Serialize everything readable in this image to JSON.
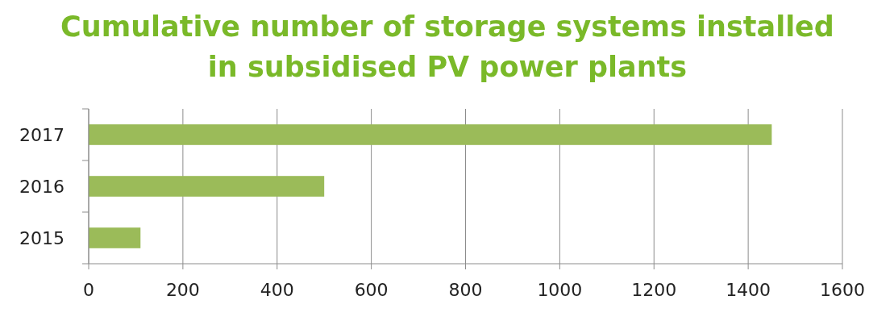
{
  "chart_data": {
    "type": "bar",
    "orientation": "horizontal",
    "title": "Cumulative number of storage systems installed in subsidised PV power plants",
    "categories": [
      "2017",
      "2016",
      "2015"
    ],
    "values": [
      1450,
      500,
      110
    ],
    "color": "#9bbb59",
    "xlim": [
      0,
      1600
    ],
    "xticks": [
      0,
      200,
      400,
      600,
      800,
      1000,
      1200,
      1400,
      1600
    ],
    "grid": "x"
  }
}
